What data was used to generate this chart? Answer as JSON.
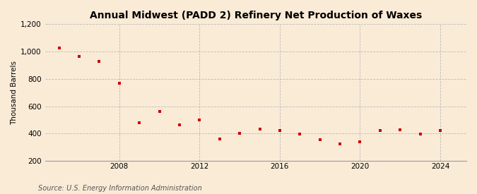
{
  "title": "Annual Midwest (PADD 2) Refinery Net Production of Waxes",
  "ylabel": "Thousand Barrels",
  "source": "Source: U.S. Energy Information Administration",
  "background_color": "#faebd7",
  "marker_color": "#cc0000",
  "years": [
    2005,
    2006,
    2007,
    2008,
    2009,
    2010,
    2011,
    2012,
    2013,
    2014,
    2015,
    2016,
    2017,
    2018,
    2019,
    2020,
    2021,
    2022,
    2023,
    2024
  ],
  "values": [
    1025,
    965,
    930,
    770,
    480,
    560,
    465,
    500,
    360,
    400,
    430,
    420,
    395,
    355,
    325,
    340,
    420,
    425,
    395,
    420
  ],
  "ylim": [
    200,
    1200
  ],
  "yticks": [
    200,
    400,
    600,
    800,
    1000,
    1200
  ],
  "xlim": [
    2004.3,
    2025.3
  ],
  "xticks": [
    2008,
    2012,
    2016,
    2020,
    2024
  ],
  "title_fontsize": 10,
  "tick_fontsize": 7.5,
  "ylabel_fontsize": 7.5,
  "source_fontsize": 7
}
